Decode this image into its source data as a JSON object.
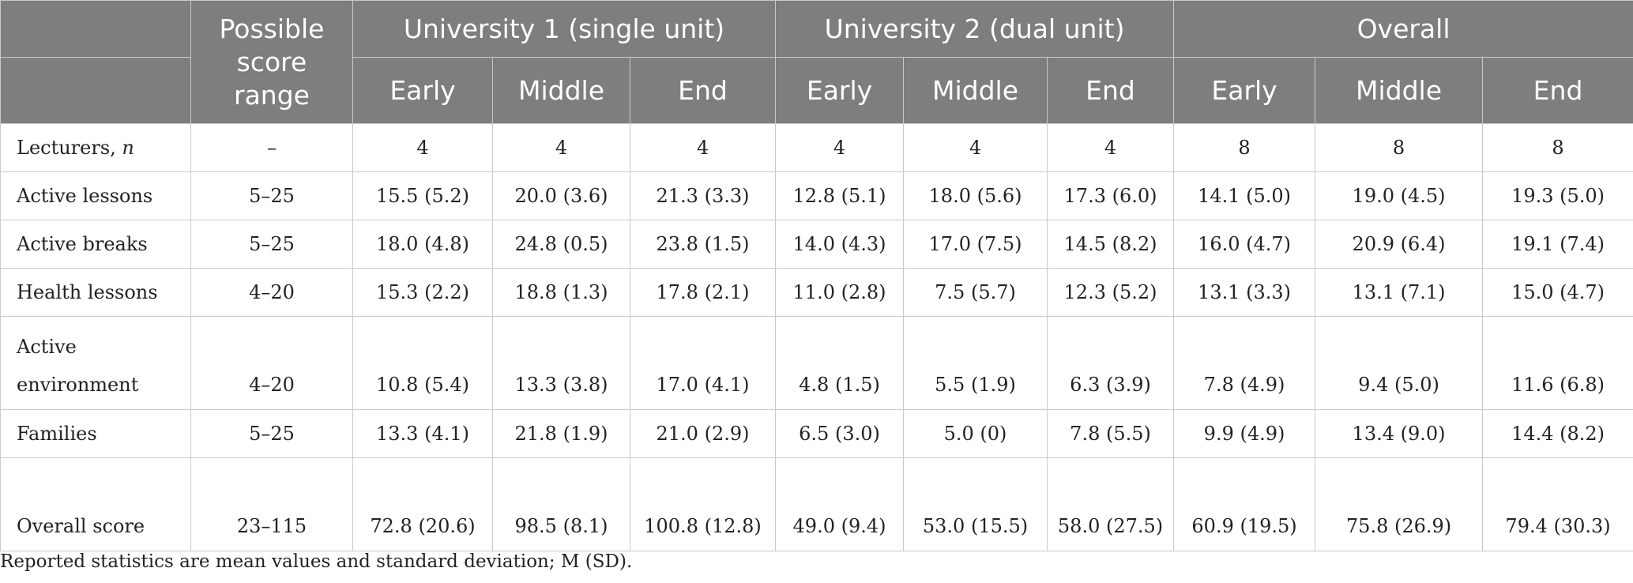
{
  "table": {
    "corner": "",
    "col_range": "Possible score range",
    "groups": [
      "University 1 (single unit)",
      "University 2 (dual unit)",
      "Overall"
    ],
    "timepoints": [
      "Early",
      "Middle",
      "End"
    ],
    "rows": [
      {
        "label": "Lecturers,",
        "label_italic": "n",
        "range": "–",
        "values": [
          "4",
          "4",
          "4",
          "4",
          "4",
          "4",
          "8",
          "8",
          "8"
        ]
      },
      {
        "label": "Active lessons",
        "label_italic": "",
        "range": "5–25",
        "values": [
          "15.5 (5.2)",
          "20.0 (3.6)",
          "21.3 (3.3)",
          "12.8 (5.1)",
          "18.0 (5.6)",
          "17.3 (6.0)",
          "14.1 (5.0)",
          "19.0 (4.5)",
          "19.3 (5.0)"
        ]
      },
      {
        "label": "Active breaks",
        "label_italic": "",
        "range": "5–25",
        "values": [
          "18.0 (4.8)",
          "24.8 (0.5)",
          "23.8 (1.5)",
          "14.0 (4.3)",
          "17.0 (7.5)",
          "14.5 (8.2)",
          "16.0 (4.7)",
          "20.9 (6.4)",
          "19.1 (7.4)"
        ]
      },
      {
        "label": "Health lessons",
        "label_italic": "",
        "range": "4–20",
        "values": [
          "15.3 (2.2)",
          "18.8 (1.3)",
          "17.8 (2.1)",
          "11.0 (2.8)",
          "7.5 (5.7)",
          "12.3 (5.2)",
          "13.1 (3.3)",
          "13.1 (7.1)",
          "15.0 (4.7)"
        ]
      },
      {
        "label": "Active environment",
        "label_italic": "",
        "range": "4–20",
        "values": [
          "10.8 (5.4)",
          "13.3 (3.8)",
          "17.0 (4.1)",
          "4.8 (1.5)",
          "5.5 (1.9)",
          "6.3 (3.9)",
          "7.8 (4.9)",
          "9.4 (5.0)",
          "11.6 (6.8)"
        ]
      },
      {
        "label": "Families",
        "label_italic": "",
        "range": "5–25",
        "values": [
          "13.3 (4.1)",
          "21.8 (1.9)",
          "21.0 (2.9)",
          "6.5 (3.0)",
          "5.0 (0)",
          "7.8 (5.5)",
          "9.9 (4.9)",
          "13.4 (9.0)",
          "14.4 (8.2)"
        ]
      },
      {
        "label": "Overall score",
        "label_italic": "",
        "range": "23–115",
        "values": [
          "72.8 (20.6)",
          "98.5 (8.1)",
          "100.8 (12.8)",
          "49.0 (9.4)",
          "53.0 (15.5)",
          "58.0 (27.5)",
          "60.9 (19.5)",
          "75.8 (26.9)",
          "79.4 (30.3)"
        ]
      }
    ]
  },
  "footnote": "Reported statistics are mean values and standard deviation; M (SD)."
}
